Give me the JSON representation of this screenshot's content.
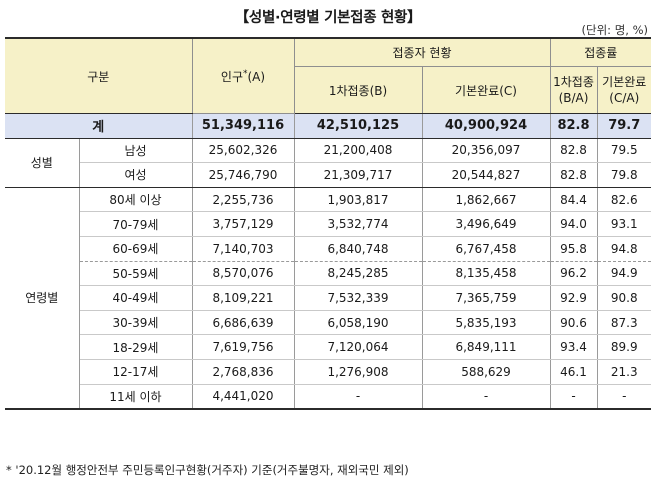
{
  "title": "【성별·연령별 기본접종 현황】",
  "unit": "(단위: 명, %)",
  "header": {
    "gubun": "구분",
    "population": "인구",
    "population_star": "*",
    "population_code": "(A)",
    "status_group": "접종자 현황",
    "rate_group": "접종률",
    "first_dose": "1차접종(B)",
    "complete": "기본완료(C)",
    "first_rate_label": "1차접종",
    "first_rate_code": "(B/A)",
    "complete_rate_label": "기본완료",
    "complete_rate_code": "(C/A)"
  },
  "total": {
    "label": "계",
    "population": "51,349,116",
    "first": "42,510,125",
    "complete": "40,900,924",
    "first_rate": "82.8",
    "complete_rate": "79.7"
  },
  "groups": {
    "sex": "성별",
    "age": "연령별"
  },
  "sex_rows": [
    {
      "label": "남성",
      "population": "25,602,326",
      "first": "21,200,408",
      "complete": "20,356,097",
      "first_rate": "82.8",
      "complete_rate": "79.5"
    },
    {
      "label": "여성",
      "population": "25,746,790",
      "first": "21,309,717",
      "complete": "20,544,827",
      "first_rate": "82.8",
      "complete_rate": "79.8"
    }
  ],
  "age_rows": [
    {
      "label": "80세 이상",
      "population": "2,255,736",
      "first": "1,903,817",
      "complete": "1,862,667",
      "first_rate": "84.4",
      "complete_rate": "82.6"
    },
    {
      "label": "70-79세",
      "population": "3,757,129",
      "first": "3,532,774",
      "complete": "3,496,649",
      "first_rate": "94.0",
      "complete_rate": "93.1"
    },
    {
      "label": "60-69세",
      "population": "7,140,703",
      "first": "6,840,748",
      "complete": "6,767,458",
      "first_rate": "95.8",
      "complete_rate": "94.8"
    },
    {
      "label": "50-59세",
      "population": "8,570,076",
      "first": "8,245,285",
      "complete": "8,135,458",
      "first_rate": "96.2",
      "complete_rate": "94.9"
    },
    {
      "label": "40-49세",
      "population": "8,109,221",
      "first": "7,532,339",
      "complete": "7,365,759",
      "first_rate": "92.9",
      "complete_rate": "90.8"
    },
    {
      "label": "30-39세",
      "population": "6,686,639",
      "first": "6,058,190",
      "complete": "5,835,193",
      "first_rate": "90.6",
      "complete_rate": "87.3"
    },
    {
      "label": "18-29세",
      "population": "7,619,756",
      "first": "7,120,064",
      "complete": "6,849,111",
      "first_rate": "93.4",
      "complete_rate": "89.9"
    },
    {
      "label": "12-17세",
      "population": "2,768,836",
      "first": "1,276,908",
      "complete": "588,629",
      "first_rate": "46.1",
      "complete_rate": "21.3"
    },
    {
      "label": "11세 이하",
      "population": "4,441,020",
      "first": "-",
      "complete": "-",
      "first_rate": "-",
      "complete_rate": "-"
    }
  ],
  "footnote": "* '20.12월 행정안전부 주민등록인구현황(거주자) 기준(거주불명자, 재외국민 제외)"
}
